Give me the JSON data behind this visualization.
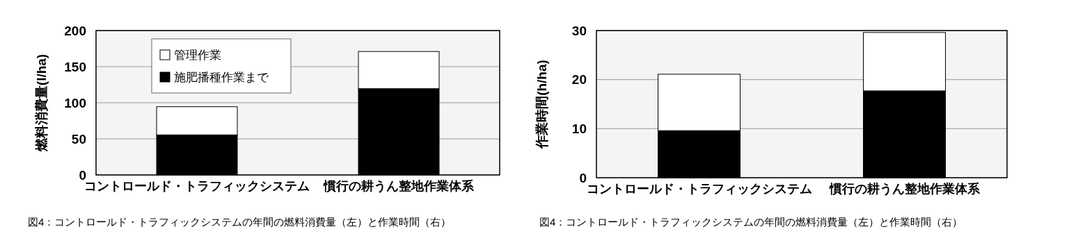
{
  "chart_data": [
    {
      "type": "bar",
      "stacked": true,
      "ylabel": "燃料消費量(l/ha)",
      "categories": [
        "コントロールド・トラフィックシステム",
        "慣行の耕うん整地作業体系"
      ],
      "series": [
        {
          "name": "施肥播種作業まで",
          "color": "#000000",
          "values": [
            55.5,
            119.5
          ]
        },
        {
          "name": "管理作業",
          "color": "#ffffff",
          "values": [
            39,
            51.5
          ]
        }
      ],
      "ylim": [
        0,
        200
      ],
      "yticks": [
        0,
        50,
        100,
        150,
        200
      ],
      "grid": "y",
      "legend": "top left",
      "annotations": [
        "図4：コントロールド・トラフィックシステムの年間の燃料消費量（左）と作業時間（右）"
      ]
    },
    {
      "type": "bar",
      "stacked": true,
      "ylabel": "作業時間(h/ha)",
      "categories": [
        "コントロールド・トラフィックシステム",
        "慣行の耕うん整地作業体系"
      ],
      "series": [
        {
          "color": "#000000",
          "values": [
            9.6,
            17.7
          ]
        },
        {
          "color": "#ffffff",
          "values": [
            11.5,
            11.9
          ]
        }
      ],
      "ylim": [
        0,
        30
      ],
      "yticks": [
        0,
        10,
        20,
        30
      ],
      "grid": "y",
      "annotations": [
        "図4：コントロールド・トラフィックシステムの年間の燃料消費量（左）と作業時間（右）"
      ]
    }
  ]
}
